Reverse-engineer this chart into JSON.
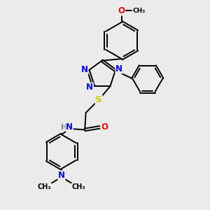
{
  "bg_color": "#ebebeb",
  "bond_color": "#000000",
  "N_color": "#0000ff",
  "O_color": "#ff0000",
  "S_color": "#cccc00",
  "H_color": "#808080",
  "font_size_atom": 8.5,
  "font_size_small": 7.0,
  "lw": 1.4,
  "xlim": [
    0,
    10
  ],
  "ylim": [
    0,
    10
  ]
}
